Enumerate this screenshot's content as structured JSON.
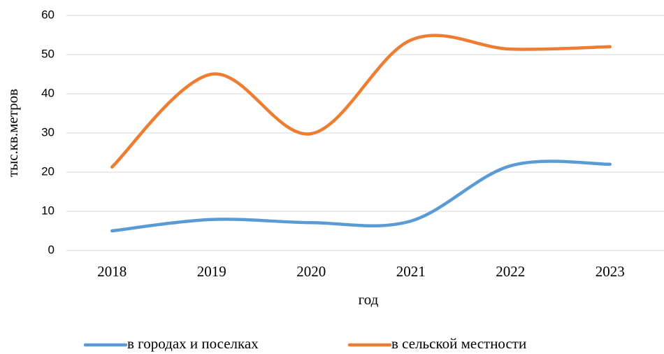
{
  "chart_data": {
    "type": "line",
    "x_label": "год",
    "y_label": "тыс.кв.метров",
    "categories": [
      "2018",
      "2019",
      "2020",
      "2021",
      "2022",
      "2023"
    ],
    "series": [
      {
        "name": "в городах и поселках",
        "color": "#5b9bd5",
        "values": [
          5,
          7.9,
          7.1,
          7.5,
          21.6,
          22
        ]
      },
      {
        "name": "в сельской местности",
        "color": "#ed7d31",
        "values": [
          21.3,
          45,
          29.8,
          53.7,
          51.4,
          52
        ]
      }
    ],
    "ylim": [
      0,
      60
    ],
    "yticks": [
      0,
      10,
      20,
      30,
      40,
      50,
      60
    ],
    "grid": true,
    "smooth": true,
    "legend": "bottom"
  }
}
